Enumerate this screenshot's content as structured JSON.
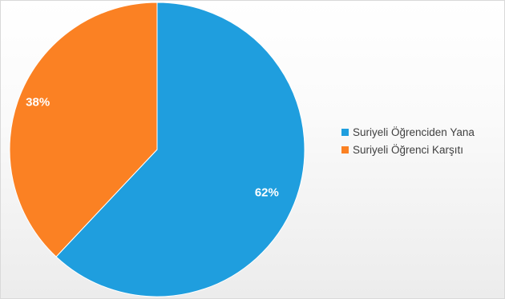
{
  "chart_data": {
    "type": "pie",
    "title": "",
    "categories": [
      "Suriyeli Öğrenciden Yana",
      "Suriyeli Öğrenci Karşıtı"
    ],
    "values": [
      62,
      38
    ],
    "data_labels": [
      "62%",
      "38%"
    ],
    "colors": [
      "#1f9ede",
      "#fb8123"
    ],
    "legend_position": "right"
  },
  "legend": {
    "items": [
      {
        "label": "Suriyeli Öğrenciden Yana",
        "color": "#1f9ede"
      },
      {
        "label": "Suriyeli Öğrenci Karşıtı",
        "color": "#fb8123"
      }
    ]
  }
}
